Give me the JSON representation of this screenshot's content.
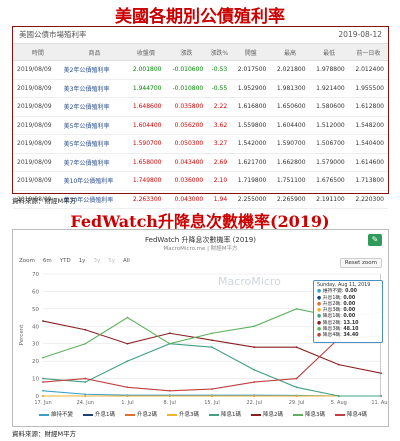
{
  "header_title": "美國各期別公債殖利率",
  "table_panel": {
    "title": "美國公債市場殖利率",
    "date": "2019-08-12"
  },
  "columns": [
    "時間",
    "商品",
    "收盤價",
    "漲跌",
    "漲跌%",
    "開盤",
    "最高",
    "最低",
    "前一日收"
  ],
  "rows": [
    [
      "2019/08/09",
      "美2年公債殖利率",
      "2.001800",
      "-0.010600",
      "-0.53",
      "2.017500",
      "2.021800",
      "1.978800",
      "2.012400"
    ],
    [
      "2019/08/09",
      "美3年公債殖利率",
      "1.944700",
      "-0.010800",
      "-0.55",
      "1.952900",
      "1.981300",
      "1.921400",
      "1.955500"
    ],
    [
      "2019/08/09",
      "美2年公債殖利率",
      "1.648600",
      "0.035800",
      "2.22",
      "1.616800",
      "1.650600",
      "1.580600",
      "1.612800"
    ],
    [
      "2019/08/09",
      "美5年公債殖利率",
      "1.604400",
      "0.056200",
      "3.62",
      "1.559800",
      "1.604400",
      "1.512000",
      "1.548200"
    ],
    [
      "2019/08/09",
      "美5年公債殖利率",
      "1.590700",
      "0.050300",
      "3.27",
      "1.542000",
      "1.590700",
      "1.506700",
      "1.540400"
    ],
    [
      "2019/08/09",
      "美7年公債殖利率",
      "1.658000",
      "0.043400",
      "2.69",
      "1.621700",
      "1.662800",
      "1.579000",
      "1.614600"
    ],
    [
      "2019/08/09",
      "美10年公債殖利率",
      "1.749800",
      "0.036000",
      "2.10",
      "1.719800",
      "1.751100",
      "1.676500",
      "1.713800"
    ],
    [
      "2019/08/09",
      "美30年公債殖利率",
      "2.263300",
      "0.043000",
      "1.94",
      "2.255000",
      "2.265900",
      "2.191100",
      "2.220300"
    ]
  ],
  "source1": "資料來源：財經M平方",
  "section2_title": "FedWatch升降息次數機率(2019)",
  "chart_panel": {
    "title": "FedWatch 升降息次數機率 (2019)",
    "subtitle": "MacroMicro.me | 財經M平方",
    "watermark": "MacroMicro",
    "edit_icon": "pencil-icon",
    "zoom_label": "Zoom",
    "zoom_options": [
      "6m",
      "YTD",
      "1y",
      "3y",
      "5y",
      "All"
    ],
    "reset_label": "Reset zoom",
    "tooltip": {
      "date": "Sunday, Aug 11, 2019",
      "items": [
        [
          "維持不變",
          "0.00"
        ],
        [
          "升息1碼",
          "0.00"
        ],
        [
          "升息2碼",
          "0.00"
        ],
        [
          "升息3碼",
          "0.00"
        ],
        [
          "降息1碼",
          "0.00"
        ],
        [
          "降息2碼",
          "13.10"
        ],
        [
          "降息3碼",
          "48.10"
        ],
        [
          "降息4碼",
          "34.40"
        ]
      ]
    }
  },
  "chart_data": {
    "type": "line",
    "ylabel": "Percent",
    "ylim": [
      0,
      70
    ],
    "yticks": [
      0,
      10,
      20,
      30,
      40,
      50,
      60,
      70
    ],
    "x": [
      "17. Jun",
      "24. Jun",
      "1. Jul",
      "8. Jul",
      "15. Jul",
      "22. Jul",
      "29. Jul",
      "5. Aug",
      "11. Aug"
    ],
    "series": [
      {
        "name": "維持不變",
        "color": "#3aa0c8",
        "values": [
          3,
          1,
          0.5,
          0.5,
          0.5,
          0.5,
          0.3,
          0,
          0
        ]
      },
      {
        "name": "升息1碼",
        "color": "#1d3f7a",
        "values": [
          0,
          0,
          0,
          0,
          0,
          0,
          0,
          0,
          0
        ]
      },
      {
        "name": "升息2碼",
        "color": "#e07030",
        "values": [
          0,
          0,
          0,
          0,
          0,
          0,
          0,
          0,
          0
        ]
      },
      {
        "name": "升息3碼",
        "color": "#f0b030",
        "values": [
          0,
          0,
          0,
          0,
          0,
          0,
          0,
          0,
          0
        ]
      },
      {
        "name": "降息1碼",
        "color": "#40a080",
        "values": [
          10,
          8,
          20,
          30,
          28,
          15,
          5,
          0,
          0
        ]
      },
      {
        "name": "降息2碼",
        "color": "#8a2020",
        "values": [
          43,
          38,
          30,
          36,
          32,
          28,
          28,
          18,
          13.1
        ]
      },
      {
        "name": "降息3碼",
        "color": "#60b060",
        "values": [
          22,
          30,
          45,
          30,
          36,
          40,
          50,
          45,
          48.1
        ]
      },
      {
        "name": "降息4碼",
        "color": "#c04040",
        "values": [
          8,
          10,
          5,
          3,
          4,
          8,
          10,
          33,
          34.4
        ]
      }
    ],
    "legend": "bottom"
  },
  "source2": "資料來源：財經M平方"
}
